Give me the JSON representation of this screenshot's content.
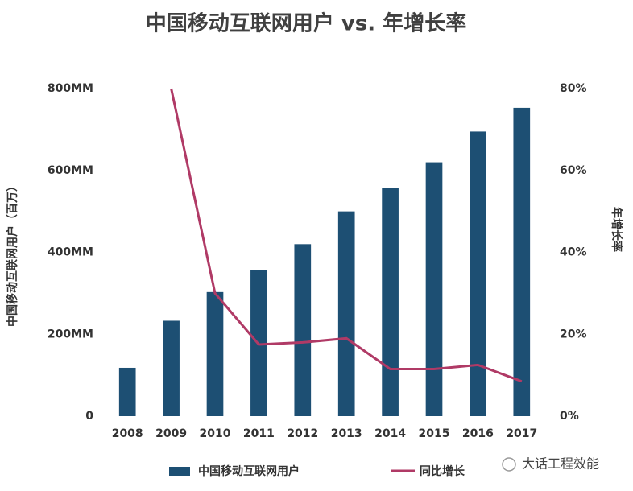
{
  "chart_data": {
    "type": "bar-line",
    "title": "中国移动互联网用户 vs. 年增长率",
    "y_label": "中国移动互联网用户（百万）",
    "y2_label": "年增长率",
    "categories": [
      "2008",
      "2009",
      "2010",
      "2011",
      "2012",
      "2013",
      "2014",
      "2015",
      "2016",
      "2017"
    ],
    "series": [
      {
        "name": "中国移动互联网用户",
        "type": "bar",
        "color": "#1d4f73",
        "values": [
          118,
          233,
          303,
          356,
          420,
          500,
          557,
          620,
          695,
          753
        ]
      },
      {
        "name": "同比增长",
        "type": "line",
        "axis": "y2",
        "color": "#b03a66",
        "values": [
          null,
          80,
          30,
          17.5,
          18,
          19,
          11.5,
          11.5,
          12.5,
          8.5
        ]
      }
    ],
    "ylim": [
      0,
      800
    ],
    "yticks": [
      0,
      {
        "value": 200,
        "label": "200MM"
      },
      {
        "value": 400,
        "label": "400MM"
      },
      {
        "value": 600,
        "label": "600MM"
      },
      {
        "value": 800,
        "label": "800MM"
      }
    ],
    "y2lim": [
      0,
      80
    ],
    "y2ticks": [
      {
        "value": 0,
        "label": "0%"
      },
      {
        "value": 20,
        "label": "20%"
      },
      {
        "value": 40,
        "label": "40%"
      },
      {
        "value": 60,
        "label": "60%"
      },
      {
        "value": 80,
        "label": "80%"
      }
    ],
    "grid": false,
    "legend": "bottom",
    "watermark": "大话工程效能"
  }
}
